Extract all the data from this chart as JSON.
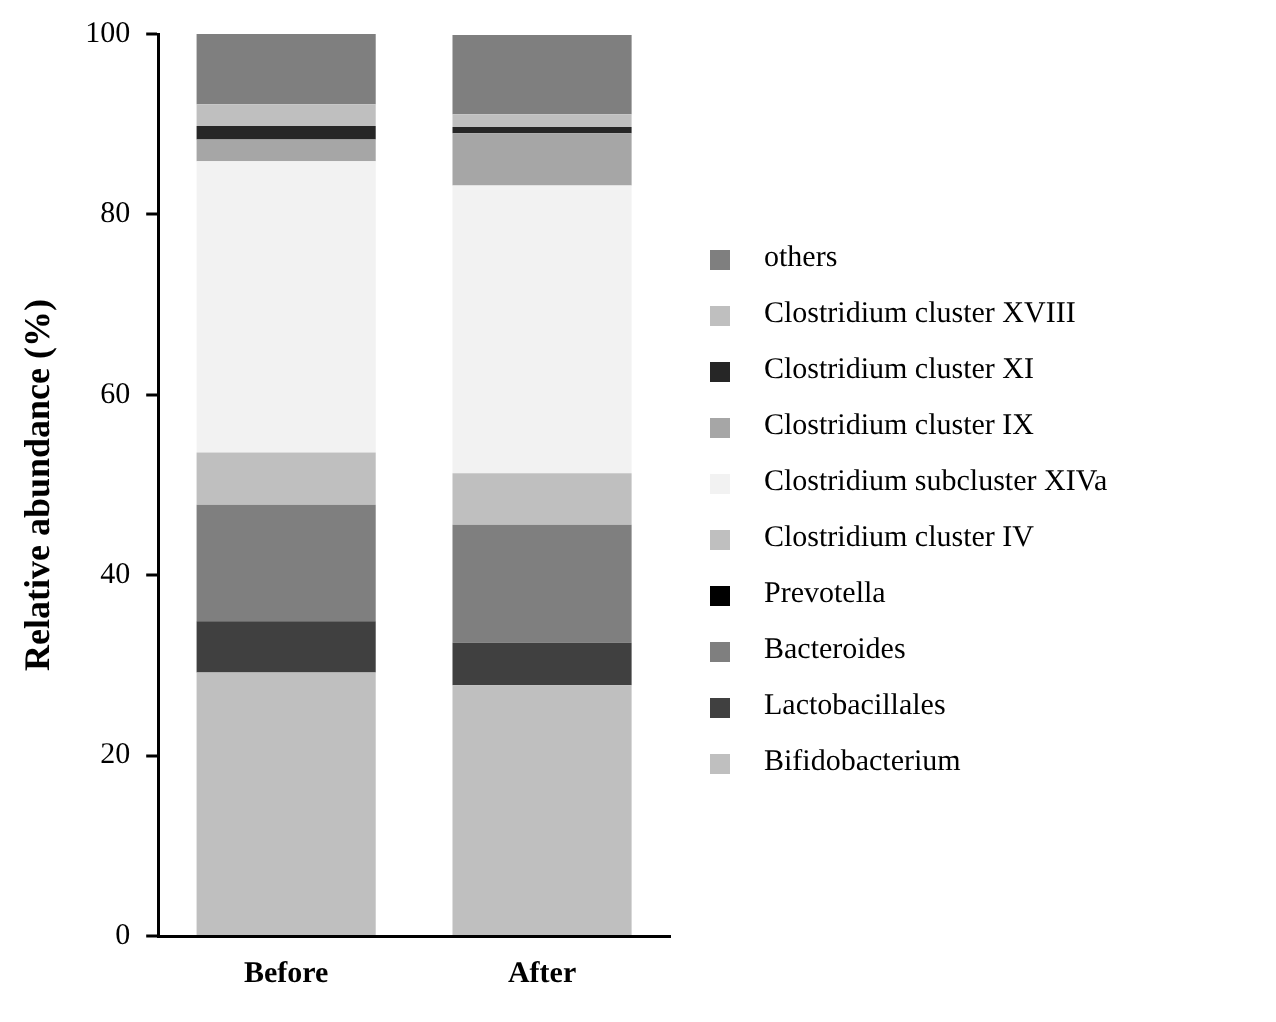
{
  "chart_data": {
    "type": "bar",
    "stacked": true,
    "ylabel": "Relative abundance (%)",
    "categories": [
      "Before",
      "After"
    ],
    "ylim": [
      0,
      100
    ],
    "yticks": [
      0,
      20,
      40,
      60,
      80,
      100
    ],
    "grid": false,
    "legend": "right",
    "series": [
      {
        "name": "Bifidobacterium",
        "color": "#bfbfbf",
        "values": [
          29.2,
          27.8
        ]
      },
      {
        "name": "Lactobacillales",
        "color": "#404040",
        "values": [
          5.7,
          4.7
        ]
      },
      {
        "name": "Bacteroides",
        "color": "#7f7f7f",
        "values": [
          12.9,
          13.1
        ]
      },
      {
        "name": "Prevotella",
        "color": "#000000",
        "values": [
          0,
          0
        ]
      },
      {
        "name": "Clostridium cluster IV",
        "color": "#bfbfbf",
        "values": [
          5.8,
          5.7
        ]
      },
      {
        "name": "Clostridium subcluster XIVa",
        "color": "#f2f2f2",
        "values": [
          32.3,
          31.9
        ]
      },
      {
        "name": "Clostridium cluster IX",
        "color": "#a6a6a6",
        "values": [
          2.4,
          5.8
        ]
      },
      {
        "name": "Clostridium cluster XI",
        "color": "#262626",
        "values": [
          1.5,
          0.7
        ]
      },
      {
        "name": "Clostridium cluster XVIII",
        "color": "#bfbfbf",
        "values": [
          2.4,
          1.4
        ]
      },
      {
        "name": "others",
        "color": "#7f7f7f",
        "values": [
          7.8,
          8.8
        ]
      }
    ]
  }
}
